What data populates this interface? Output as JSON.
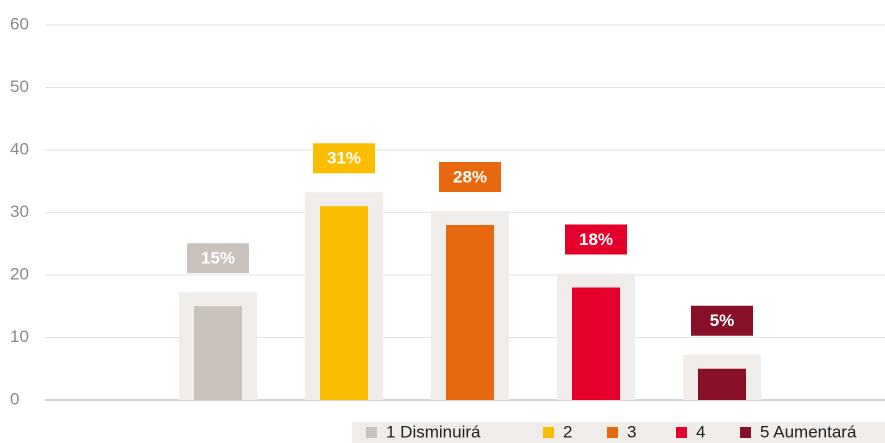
{
  "chart_data": {
    "type": "bar",
    "categories": [
      "1 Disminuirá",
      "2",
      "3",
      "4",
      "5 Aumentará"
    ],
    "values": [
      15,
      31,
      28,
      18,
      5
    ],
    "value_labels": [
      "15%",
      "31%",
      "28%",
      "18%",
      "5%"
    ],
    "colors": [
      "#c9c1bb",
      "#fbbd00",
      "#e8680f",
      "#e4002b",
      "#870f27"
    ],
    "ylim": [
      0,
      60
    ],
    "yticks": [
      0,
      10,
      20,
      30,
      40,
      50,
      60
    ],
    "grid": true
  }
}
